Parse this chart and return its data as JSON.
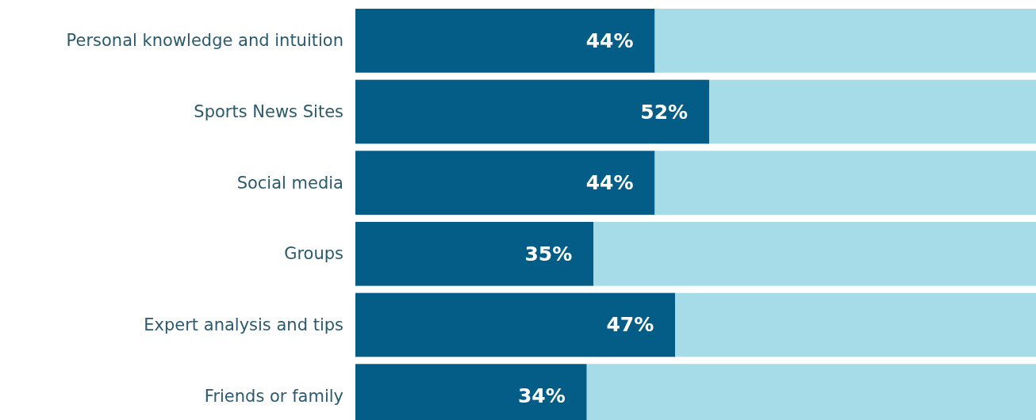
{
  "chart_data": {
    "type": "bar",
    "orientation": "horizontal",
    "stacked": true,
    "categories": [
      "Personal knowledge and intuition",
      "Sports News Sites",
      "Social media",
      "Groups",
      "Expert analysis and tips",
      "Friends or family"
    ],
    "series": [
      {
        "color": "#045d87",
        "values": [
          44,
          52,
          44,
          35,
          47,
          34
        ],
        "value_labels": [
          "44%",
          "52%",
          "44%",
          "35%",
          "47%",
          "34%"
        ]
      },
      {
        "color": "#a6dce8",
        "values": [
          56,
          48,
          56,
          65,
          53,
          66
        ]
      }
    ],
    "xlim": [
      0,
      100
    ],
    "tick_labels": "y"
  }
}
